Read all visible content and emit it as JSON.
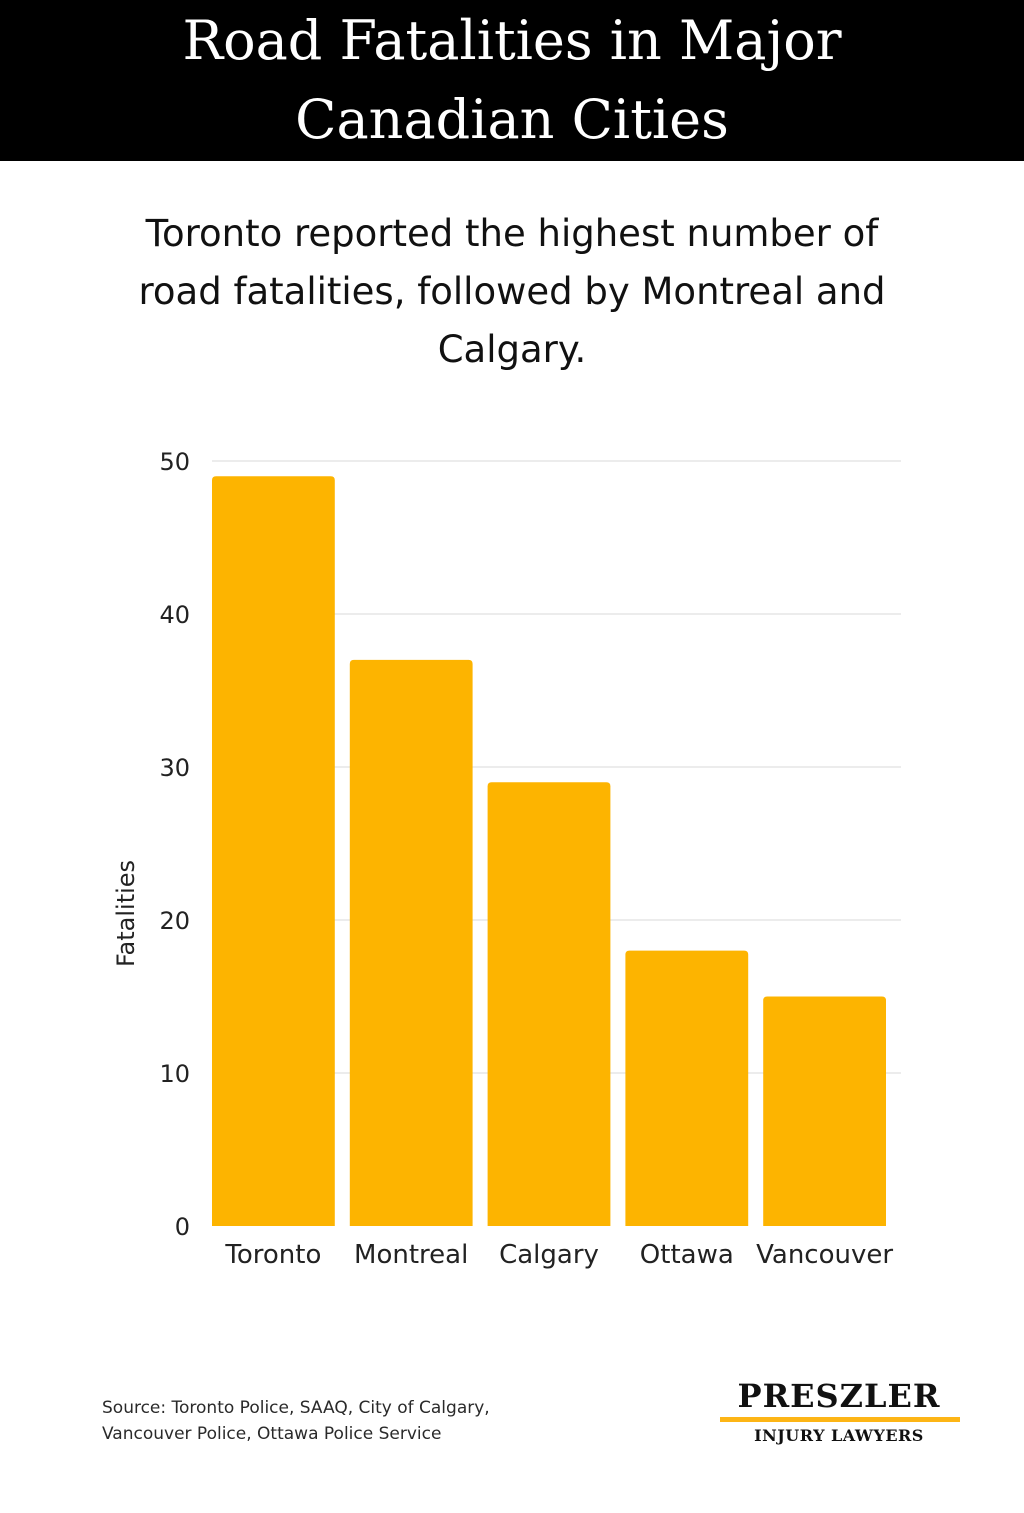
{
  "header": {
    "title_line1": "Road Fatalities in Major",
    "title_line2": "Canadian Cities",
    "background_color": "#000000"
  },
  "subtitle": {
    "line1": "Toronto reported the highest number of",
    "line2": "road fatalities, followed by Montreal and",
    "line3": "Calgary."
  },
  "chart_data": {
    "type": "bar",
    "categories": [
      "Toronto",
      "Montreal",
      "Calgary",
      "Ottawa",
      "Vancouver"
    ],
    "values": [
      49,
      37,
      29,
      18,
      15
    ],
    "title": "Road Fatalities in Major Canadian Cities",
    "subtitle": "Toronto reported the highest number of road fatalities, followed by Montreal and Calgary.",
    "xlabel": "",
    "ylabel": "Fatalities",
    "ylim": [
      0,
      50
    ],
    "yticks": [
      0,
      10,
      20,
      30,
      40,
      50
    ],
    "grid": true,
    "bar_color": "#FDB400",
    "legend": "none"
  },
  "footer": {
    "source_line1": "Source: Toronto Police, SAAQ, City of Calgary,",
    "source_line2": "Vancouver Police, Ottawa Police Service"
  },
  "logo": {
    "name": "PRESZLER",
    "tagline": "INJURY LAWYERS",
    "accent_color": "#FDB515"
  }
}
